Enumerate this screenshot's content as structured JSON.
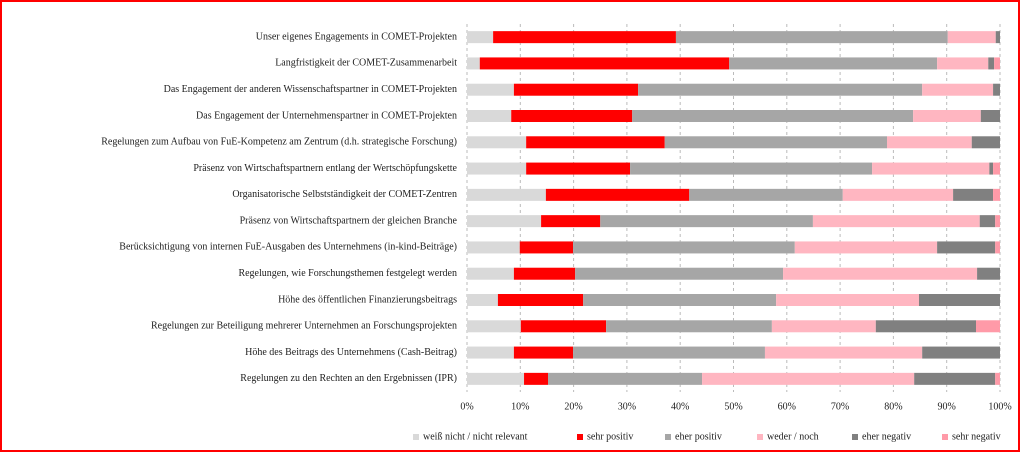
{
  "chart_data": {
    "type": "stacked-bar-horizontal",
    "categories": [
      "Unser eigenes Engagements in COMET-Projekten",
      "Langfristigkeit der COMET-Zusammenarbeit",
      "Das Engagement der anderen Wissenschaftspartner in COMET-Projekten",
      "Das Engagement der Unternehmenspartner in COMET-Projekten",
      "Regelungen zum Aufbau von FuE-Kompetenz am Zentrum (d.h. strategische Forschung)",
      "Präsenz von Wirtschaftspartnern entlang der Wertschöpfungskette",
      "Organisatorische Selbstständigkeit der COMET-Zentren",
      "Präsenz von Wirtschaftspartnern der gleichen Branche",
      "Berücksichtigung von internen FuE-Ausgaben des Unternehmens (in-kind-Beiträge)",
      "Regelungen, wie Forschungsthemen festgelegt werden",
      "Höhe des öffentlichen Finanzierungsbeitrags",
      "Regelungen zur Beteiligung mehrerer Unternehmen an Forschungsprojekten",
      "Höhe des Beitrags des Unternehmens (Cash-Beitrag)",
      "Regelungen zu den Rechten an den Ergebnissen (IPR)"
    ],
    "series": [
      {
        "name": "weiß nicht / nicht relevant",
        "color": "#d9d9d9",
        "values": [
          4.9,
          2.4,
          8.8,
          8.3,
          11.1,
          11.1,
          14.8,
          13.9,
          9.9,
          8.8,
          5.8,
          10.1,
          8.8,
          10.7
        ]
      },
      {
        "name": "sehr positiv",
        "color": "#ff0000",
        "values": [
          34.3,
          46.8,
          23.3,
          22.7,
          26.0,
          19.5,
          26.9,
          11.1,
          10.0,
          11.5,
          16.0,
          16.0,
          11.1,
          4.5
        ]
      },
      {
        "name": "eher positiv",
        "color": "#a6a6a6",
        "values": [
          51.0,
          39.0,
          53.3,
          52.7,
          41.7,
          45.4,
          28.8,
          39.9,
          41.6,
          39.0,
          36.2,
          31.1,
          36.0,
          28.9
        ]
      },
      {
        "name": "weder / noch",
        "color": "#ffb6c1",
        "values": [
          9.0,
          9.6,
          13.3,
          12.7,
          15.9,
          22.0,
          20.7,
          31.3,
          26.7,
          36.4,
          26.8,
          19.5,
          29.5,
          39.8
        ]
      },
      {
        "name": "eher negativ",
        "color": "#808080",
        "values": [
          0.8,
          1.1,
          1.3,
          3.6,
          5.3,
          0.7,
          7.5,
          2.9,
          10.9,
          4.3,
          15.2,
          18.8,
          14.6,
          15.2
        ]
      },
      {
        "name": "sehr negativ",
        "color": "#ff9aa8",
        "values": [
          0,
          1.1,
          0,
          0,
          0,
          1.3,
          1.3,
          0.9,
          0.9,
          0,
          0,
          4.5,
          0,
          0.9
        ]
      }
    ],
    "xlim": [
      0,
      100
    ],
    "xticks": [
      {
        "value": 0,
        "label": "0%"
      },
      {
        "value": 10,
        "label": "10%"
      },
      {
        "value": 20,
        "label": "20%"
      },
      {
        "value": 30,
        "label": "30%"
      },
      {
        "value": 40,
        "label": "40%"
      },
      {
        "value": 50,
        "label": "50%"
      },
      {
        "value": 60,
        "label": "60%"
      },
      {
        "value": 70,
        "label": "70%"
      },
      {
        "value": 80,
        "label": "80%"
      },
      {
        "value": 90,
        "label": "90%"
      },
      {
        "value": 100,
        "label": "100%"
      }
    ],
    "grid": true,
    "legend": "bottom"
  }
}
